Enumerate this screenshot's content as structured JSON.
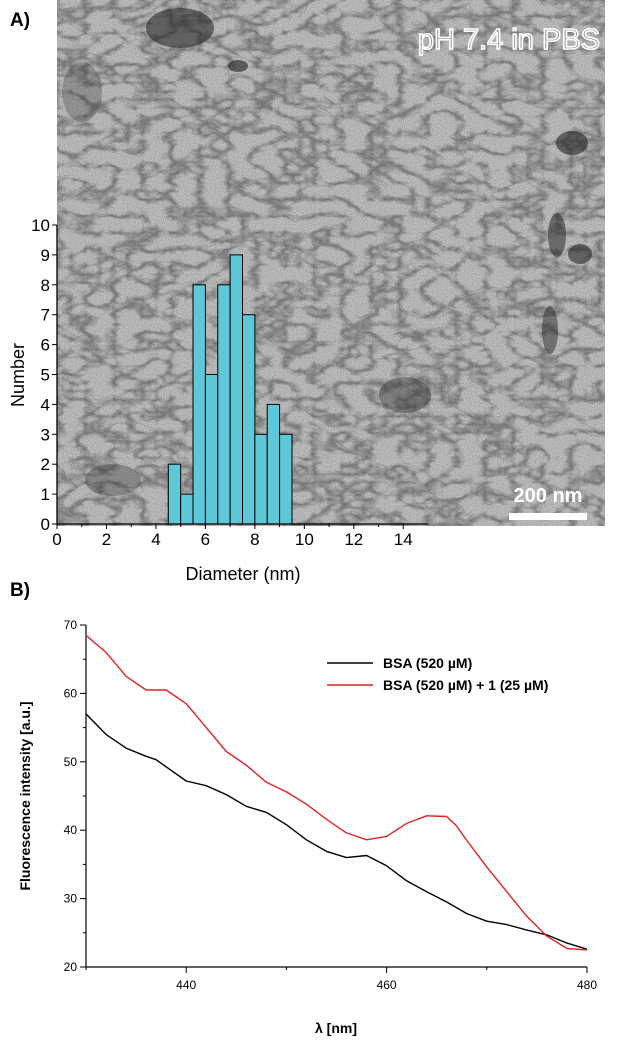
{
  "panel_labels": [
    "A)",
    "B)"
  ],
  "micrograph": {
    "annotation": "pH 7.4 in PBS",
    "scale_bar_label": "200 nm",
    "background_color": "#9a9a9a"
  },
  "chart_data": [
    {
      "type": "bar",
      "subtype": "histogram",
      "xlabel": "Diameter (nm)",
      "ylabel": "Number",
      "xlim": [
        0,
        15
      ],
      "ylim": [
        0,
        10
      ],
      "xticks": [
        0,
        2,
        4,
        6,
        8,
        10,
        12,
        14
      ],
      "yticks": [
        0,
        1,
        2,
        3,
        4,
        5,
        6,
        7,
        8,
        9,
        10
      ],
      "bin_width": 0.5,
      "bins": [
        {
          "x": 4.5,
          "value": 2
        },
        {
          "x": 5.0,
          "value": 1
        },
        {
          "x": 5.5,
          "value": 8
        },
        {
          "x": 6.0,
          "value": 5
        },
        {
          "x": 6.5,
          "value": 8
        },
        {
          "x": 7.0,
          "value": 9
        },
        {
          "x": 7.5,
          "value": 7
        },
        {
          "x": 8.0,
          "value": 3
        },
        {
          "x": 8.5,
          "value": 4
        },
        {
          "x": 9.0,
          "value": 3
        }
      ],
      "bar_color": "#5ec8d8"
    },
    {
      "type": "line",
      "xlabel": "λ [nm]",
      "ylabel": "Fluorescence intensity [a.u.]",
      "xlim": [
        430,
        480
      ],
      "ylim": [
        20,
        70
      ],
      "xticks": [
        440,
        460,
        480
      ],
      "yticks": [
        20,
        30,
        40,
        50,
        60,
        70
      ],
      "legend_position": "top-right",
      "series": [
        {
          "name": "BSA (520 µM)",
          "color": "#000000",
          "x": [
            430,
            432,
            434,
            436,
            437,
            440,
            442,
            444,
            446,
            448,
            450,
            452,
            454,
            456,
            458,
            460,
            462,
            464,
            466,
            468,
            470,
            472,
            474,
            476,
            478,
            480
          ],
          "y": [
            57,
            54,
            52,
            50.8,
            50.3,
            47.2,
            46.5,
            45.2,
            43.5,
            42.6,
            40.8,
            38.6,
            36.9,
            36.0,
            36.3,
            34.8,
            32.6,
            31.0,
            29.5,
            27.8,
            26.7,
            26.2,
            25.4,
            24.7,
            23.5,
            22.6
          ]
        },
        {
          "name": "BSA (520 µM) + 1 (25 µM)",
          "color": "#e32222",
          "x": [
            430,
            432,
            434,
            436,
            438,
            440,
            442,
            444,
            446,
            448,
            450,
            452,
            454,
            456,
            458,
            460,
            462,
            464,
            466,
            467,
            468,
            470,
            472,
            474,
            476,
            478,
            480
          ],
          "y": [
            68.5,
            66.0,
            62.5,
            60.5,
            60.5,
            58.5,
            55.0,
            51.5,
            49.5,
            47.0,
            45.6,
            43.8,
            41.6,
            39.6,
            38.6,
            39.1,
            41.0,
            42.1,
            42.0,
            40.6,
            38.5,
            34.6,
            31.0,
            27.4,
            24.5,
            22.7,
            22.5
          ]
        }
      ]
    }
  ]
}
